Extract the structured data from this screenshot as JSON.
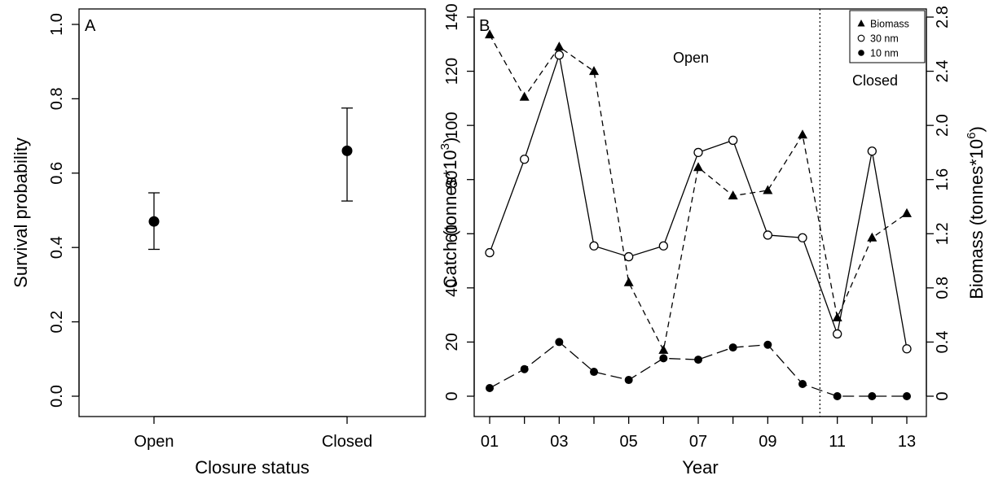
{
  "chart_data": [
    {
      "panel": "A",
      "type": "scatter",
      "title": "",
      "xlabel": "Closure status",
      "ylabel": "Survival probability",
      "categories": [
        "Open",
        "Closed"
      ],
      "ylim": [
        0,
        1
      ],
      "yticks": [
        "0.0",
        "0.2",
        "0.4",
        "0.6",
        "0.8",
        "1.0"
      ],
      "values": [
        0.47,
        0.66
      ],
      "lower": [
        0.395,
        0.525
      ],
      "upper": [
        0.547,
        0.775
      ],
      "grid": false,
      "legend": "none",
      "point_color": "#000000"
    },
    {
      "panel": "B",
      "type": "line",
      "title": "",
      "xlabel": "Year",
      "ylabel": "Catch (tonnes*10",
      "ylabel_sup": "3",
      "ylabel_end": ")",
      "y2label": "Biomass (tonnes*10",
      "y2label_sup": "6",
      "y2label_end": ")",
      "x": [
        1,
        2,
        3,
        4,
        5,
        6,
        7,
        8,
        9,
        10,
        11,
        12,
        13
      ],
      "xlim": [
        1,
        13
      ],
      "xticks": [
        "01",
        "03",
        "05",
        "07",
        "09",
        "11",
        "13"
      ],
      "ylim": [
        0,
        140
      ],
      "yticks": [
        "0",
        "20",
        "40",
        "60",
        "80",
        "100",
        "120",
        "140"
      ],
      "y2lim": [
        0,
        2.8
      ],
      "y2ticks": [
        "0",
        "0.4",
        "0.8",
        "1.2",
        "1.6",
        "2.0",
        "2.4",
        "2.8"
      ],
      "closure_year": 10.5,
      "annotations": {
        "open": "Open",
        "closed": "Closed"
      },
      "legend_position": "top-right",
      "grid": false,
      "series": [
        {
          "name": "Biomass",
          "axis": "right",
          "marker": "triangle",
          "line": "dashed",
          "values": [
            2.67,
            2.21,
            2.58,
            2.4,
            0.84,
            0.34,
            1.69,
            1.48,
            1.52,
            1.93,
            0.58,
            1.17,
            1.35
          ]
        },
        {
          "name": "30 nm",
          "axis": "left",
          "marker": "open-circle",
          "line": "solid",
          "values": [
            53,
            87.5,
            126,
            55.5,
            51.5,
            55.5,
            90,
            94.5,
            59.5,
            58.5,
            23,
            90.5,
            17.5
          ]
        },
        {
          "name": "10 nm",
          "axis": "left",
          "marker": "filled-circle",
          "line": "long-dash",
          "values": [
            3,
            10,
            20,
            9,
            6,
            14,
            13.5,
            18,
            19,
            4.5,
            0,
            0,
            0
          ]
        }
      ]
    }
  ]
}
